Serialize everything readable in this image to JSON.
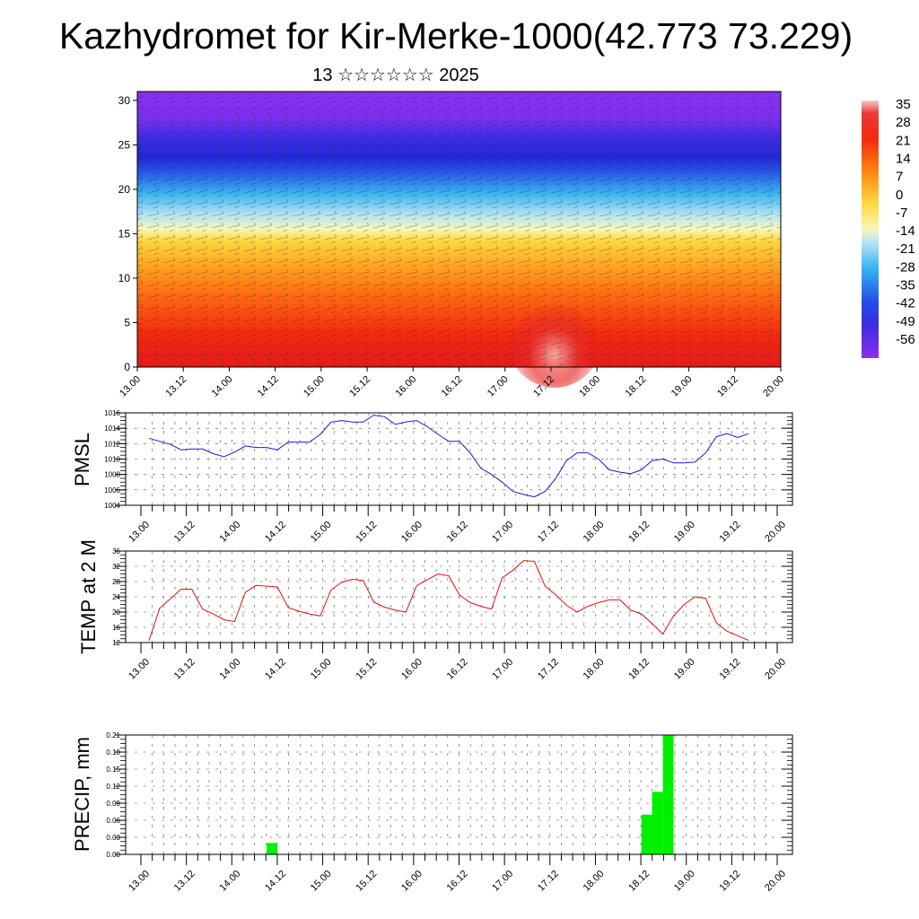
{
  "title": "Kazhydromet for Kir-Merke-1000(42.773 73.229)",
  "subtitle": "13 ☆☆☆☆☆☆ 2025",
  "chart_data": [
    {
      "type": "heatmap",
      "name": "cross-section",
      "x_ticks": [
        "13.00",
        "13.12",
        "14.00",
        "14.12",
        "15.00",
        "15.12",
        "16.00",
        "16.12",
        "17.00",
        "17.12",
        "18.00",
        "18.12",
        "19.00",
        "19.12",
        "20.00"
      ],
      "y_ticks": [
        "0",
        "5",
        "10",
        "15",
        "20",
        "25",
        "30"
      ],
      "ylim": [
        0,
        31
      ],
      "colorbar_labels": [
        "35",
        "28",
        "21",
        "14",
        "7",
        "0",
        "-7",
        "-14",
        "-21",
        "-28",
        "-35",
        "-42",
        "-49",
        "-56"
      ],
      "colors": {
        "hot": "#d81010",
        "warm": "#ff6a00",
        "mild": "#ffd030",
        "cool": "#f8f6b0",
        "cold": "#40b8f0",
        "freezing": "#2040e0",
        "deep": "#8030f0",
        "peak": "#f0b8b8"
      }
    },
    {
      "type": "line",
      "ylabel": "PMSL",
      "x_ticks": [
        "13.00",
        "13.12",
        "14.00",
        "14.12",
        "15.00",
        "15.12",
        "16.00",
        "16.12",
        "17.00",
        "17.12",
        "18.00",
        "18.12",
        "19.00",
        "19.12",
        "20.00"
      ],
      "y_ticks": [
        "1004",
        "1006",
        "1008",
        "1010",
        "1012",
        "1014",
        "1016"
      ],
      "ylim": [
        1004,
        1016
      ],
      "color": "#1a1adc",
      "values": [
        1012.7,
        1012.3,
        1011.9,
        1011.2,
        1011.3,
        1011.3,
        1010.7,
        1010.3,
        1010.9,
        1011.7,
        1011.5,
        1011.5,
        1011.2,
        1012.2,
        1012.2,
        1012.2,
        1013.2,
        1014.8,
        1015.0,
        1014.8,
        1014.8,
        1015.7,
        1015.5,
        1014.5,
        1014.8,
        1015.0,
        1014.2,
        1013.2,
        1012.3,
        1012.3,
        1010.8,
        1008.8,
        1008.0,
        1007.0,
        1005.8,
        1005.4,
        1005.1,
        1005.8,
        1007.5,
        1009.8,
        1010.8,
        1010.8,
        1010.0,
        1008.6,
        1008.3,
        1008.1,
        1008.6,
        1009.8,
        1010.0,
        1009.5,
        1009.5,
        1009.6,
        1010.8,
        1012.9,
        1013.3,
        1012.8,
        1013.3
      ]
    },
    {
      "type": "line",
      "ylabel": "TEMP at 2 M",
      "x_ticks": [
        "13.00",
        "13.12",
        "14.00",
        "14.12",
        "15.00",
        "15.12",
        "16.00",
        "16.12",
        "17.00",
        "17.12",
        "18.00",
        "18.12",
        "19.00",
        "19.12",
        "20.00"
      ],
      "y_ticks": [
        "12",
        "16",
        "20",
        "24",
        "28",
        "32",
        "36"
      ],
      "ylim": [
        12,
        36
      ],
      "color": "#e01010",
      "values": [
        12.5,
        21.0,
        23.5,
        26.0,
        26.0,
        20.8,
        19.5,
        18.0,
        17.5,
        25.2,
        27.0,
        26.8,
        26.6,
        21.2,
        20.2,
        19.5,
        19.0,
        25.8,
        27.8,
        28.6,
        28.3,
        22.6,
        21.3,
        20.5,
        20.0,
        26.9,
        28.5,
        30.0,
        29.5,
        24.5,
        22.5,
        21.5,
        20.8,
        29.0,
        31.0,
        33.5,
        33.3,
        26.8,
        24.5,
        21.8,
        20.0,
        21.5,
        22.5,
        23.2,
        23.2,
        20.5,
        19.5,
        17.0,
        14.2,
        19.0,
        22.0,
        24.0,
        23.6,
        17.2,
        15.0,
        13.8,
        12.6
      ]
    },
    {
      "type": "bar",
      "ylabel": "PRECIP, mm",
      "x_ticks": [
        "13.00",
        "13.12",
        "14.00",
        "14.12",
        "15.00",
        "15.12",
        "16.00",
        "16.12",
        "17.00",
        "17.12",
        "18.00",
        "18.12",
        "19.00",
        "19.12",
        "20.00"
      ],
      "y_ticks": [
        "0.00",
        "0.03",
        "0.06",
        "0.09",
        "0.12",
        "0.15",
        "0.18",
        "0.21"
      ],
      "ylim": [
        0,
        0.21
      ],
      "color": "#00f000",
      "bars": [
        {
          "x": 11.5,
          "value": 0.02
        },
        {
          "x": 46.5,
          "value": 0.07
        },
        {
          "x": 47.5,
          "value": 0.11
        },
        {
          "x": 48.5,
          "value": 0.21
        }
      ]
    }
  ]
}
